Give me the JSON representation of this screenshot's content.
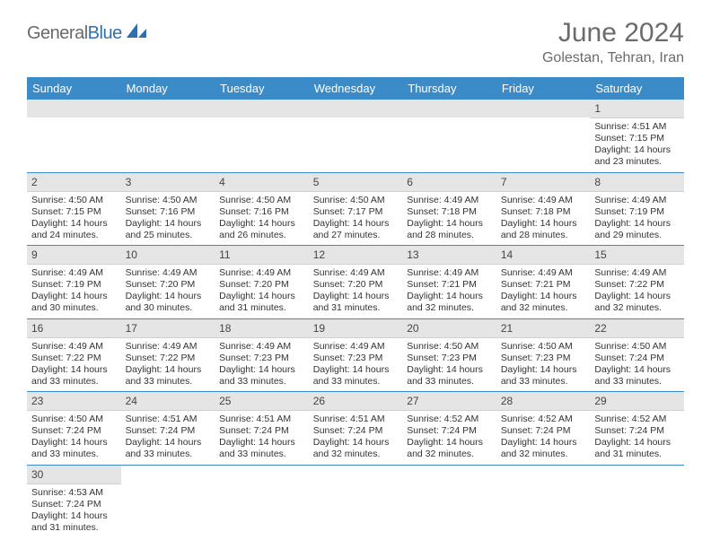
{
  "logo": {
    "general": "General",
    "blue": "Blue"
  },
  "title": "June 2024",
  "location": "Golestan, Tehran, Iran",
  "weekdays": [
    "Sunday",
    "Monday",
    "Tuesday",
    "Wednesday",
    "Thursday",
    "Friday",
    "Saturday"
  ],
  "colors": {
    "header_bg": "#3b8bc9",
    "header_text": "#ffffff",
    "daynum_bg": "#e5e5e5",
    "border": "#3b8bc9",
    "title_color": "#6b6b6b",
    "logo_general": "#6a6a6a",
    "logo_blue": "#2f6fb0"
  },
  "days": {
    "1": {
      "sunrise": "4:51 AM",
      "sunset": "7:15 PM",
      "daylight": "14 hours and 23 minutes."
    },
    "2": {
      "sunrise": "4:50 AM",
      "sunset": "7:15 PM",
      "daylight": "14 hours and 24 minutes."
    },
    "3": {
      "sunrise": "4:50 AM",
      "sunset": "7:16 PM",
      "daylight": "14 hours and 25 minutes."
    },
    "4": {
      "sunrise": "4:50 AM",
      "sunset": "7:16 PM",
      "daylight": "14 hours and 26 minutes."
    },
    "5": {
      "sunrise": "4:50 AM",
      "sunset": "7:17 PM",
      "daylight": "14 hours and 27 minutes."
    },
    "6": {
      "sunrise": "4:49 AM",
      "sunset": "7:18 PM",
      "daylight": "14 hours and 28 minutes."
    },
    "7": {
      "sunrise": "4:49 AM",
      "sunset": "7:18 PM",
      "daylight": "14 hours and 28 minutes."
    },
    "8": {
      "sunrise": "4:49 AM",
      "sunset": "7:19 PM",
      "daylight": "14 hours and 29 minutes."
    },
    "9": {
      "sunrise": "4:49 AM",
      "sunset": "7:19 PM",
      "daylight": "14 hours and 30 minutes."
    },
    "10": {
      "sunrise": "4:49 AM",
      "sunset": "7:20 PM",
      "daylight": "14 hours and 30 minutes."
    },
    "11": {
      "sunrise": "4:49 AM",
      "sunset": "7:20 PM",
      "daylight": "14 hours and 31 minutes."
    },
    "12": {
      "sunrise": "4:49 AM",
      "sunset": "7:20 PM",
      "daylight": "14 hours and 31 minutes."
    },
    "13": {
      "sunrise": "4:49 AM",
      "sunset": "7:21 PM",
      "daylight": "14 hours and 32 minutes."
    },
    "14": {
      "sunrise": "4:49 AM",
      "sunset": "7:21 PM",
      "daylight": "14 hours and 32 minutes."
    },
    "15": {
      "sunrise": "4:49 AM",
      "sunset": "7:22 PM",
      "daylight": "14 hours and 32 minutes."
    },
    "16": {
      "sunrise": "4:49 AM",
      "sunset": "7:22 PM",
      "daylight": "14 hours and 33 minutes."
    },
    "17": {
      "sunrise": "4:49 AM",
      "sunset": "7:22 PM",
      "daylight": "14 hours and 33 minutes."
    },
    "18": {
      "sunrise": "4:49 AM",
      "sunset": "7:23 PM",
      "daylight": "14 hours and 33 minutes."
    },
    "19": {
      "sunrise": "4:49 AM",
      "sunset": "7:23 PM",
      "daylight": "14 hours and 33 minutes."
    },
    "20": {
      "sunrise": "4:50 AM",
      "sunset": "7:23 PM",
      "daylight": "14 hours and 33 minutes."
    },
    "21": {
      "sunrise": "4:50 AM",
      "sunset": "7:23 PM",
      "daylight": "14 hours and 33 minutes."
    },
    "22": {
      "sunrise": "4:50 AM",
      "sunset": "7:24 PM",
      "daylight": "14 hours and 33 minutes."
    },
    "23": {
      "sunrise": "4:50 AM",
      "sunset": "7:24 PM",
      "daylight": "14 hours and 33 minutes."
    },
    "24": {
      "sunrise": "4:51 AM",
      "sunset": "7:24 PM",
      "daylight": "14 hours and 33 minutes."
    },
    "25": {
      "sunrise": "4:51 AM",
      "sunset": "7:24 PM",
      "daylight": "14 hours and 33 minutes."
    },
    "26": {
      "sunrise": "4:51 AM",
      "sunset": "7:24 PM",
      "daylight": "14 hours and 32 minutes."
    },
    "27": {
      "sunrise": "4:52 AM",
      "sunset": "7:24 PM",
      "daylight": "14 hours and 32 minutes."
    },
    "28": {
      "sunrise": "4:52 AM",
      "sunset": "7:24 PM",
      "daylight": "14 hours and 32 minutes."
    },
    "29": {
      "sunrise": "4:52 AM",
      "sunset": "7:24 PM",
      "daylight": "14 hours and 31 minutes."
    },
    "30": {
      "sunrise": "4:53 AM",
      "sunset": "7:24 PM",
      "daylight": "14 hours and 31 minutes."
    }
  },
  "labels": {
    "sunrise": "Sunrise:",
    "sunset": "Sunset:",
    "daylight": "Daylight:"
  },
  "grid": [
    [
      null,
      null,
      null,
      null,
      null,
      null,
      "1"
    ],
    [
      "2",
      "3",
      "4",
      "5",
      "6",
      "7",
      "8"
    ],
    [
      "9",
      "10",
      "11",
      "12",
      "13",
      "14",
      "15"
    ],
    [
      "16",
      "17",
      "18",
      "19",
      "20",
      "21",
      "22"
    ],
    [
      "23",
      "24",
      "25",
      "26",
      "27",
      "28",
      "29"
    ],
    [
      "30",
      null,
      null,
      null,
      null,
      null,
      null
    ]
  ]
}
